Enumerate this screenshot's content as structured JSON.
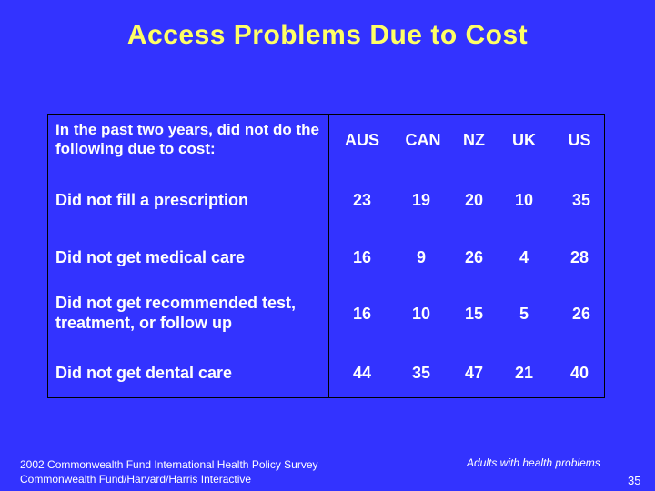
{
  "title": "Access Problems Due to Cost",
  "table": {
    "question": "In the past two years, did not do the following due to cost:",
    "columns": [
      "AUS",
      "CAN",
      "NZ",
      "UK",
      "US"
    ],
    "rows": [
      {
        "label": "Did not fill a prescription",
        "values": [
          "23",
          "19",
          "20",
          "10",
          "35"
        ]
      },
      {
        "label": "Did not get medical care",
        "values": [
          "16",
          "9",
          "26",
          "4",
          "28"
        ]
      },
      {
        "label": "Did not get recommended test, treatment, or follow up",
        "values": [
          "16",
          "10",
          "15",
          "5",
          "26"
        ]
      },
      {
        "label": "Did not get dental care",
        "values": [
          "44",
          "35",
          "47",
          "21",
          "40"
        ]
      }
    ]
  },
  "footer": {
    "line1": "2002 Commonwealth Fund International Health Policy Survey",
    "line2": "Commonwealth Fund/Harvard/Harris Interactive"
  },
  "note": "Adults with health problems",
  "page_number": "35"
}
